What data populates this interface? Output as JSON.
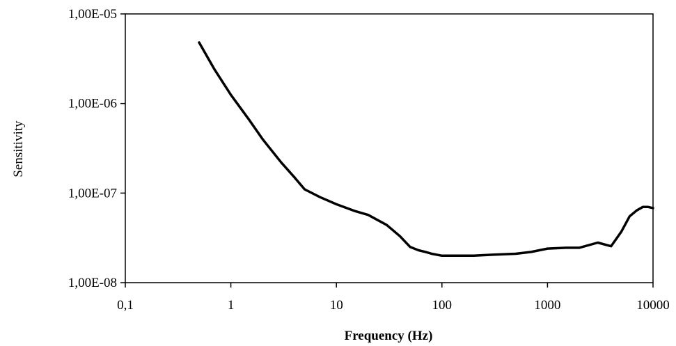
{
  "chart_data": {
    "type": "line",
    "xlabel": "Frequency (Hz)",
    "ylabel": "Sensitivity",
    "x_scale": "log",
    "y_scale": "log",
    "xlim": [
      0.1,
      10000
    ],
    "ylim": [
      1e-08,
      1e-05
    ],
    "x_ticks": [
      "0,1",
      "1",
      "10",
      "100",
      "1000",
      "10000"
    ],
    "y_ticks": [
      "1,00E-08",
      "1,00E-07",
      "1,00E-06",
      "1,00E-05"
    ],
    "grid": false,
    "legend": "none",
    "series": [
      {
        "x": [
          0.5,
          0.7,
          1,
          1.5,
          2,
          3,
          4,
          5,
          7,
          10,
          15,
          20,
          30,
          40,
          50,
          60,
          70,
          80,
          100,
          200,
          300,
          500,
          700,
          1000,
          1500,
          2000,
          3000,
          4000,
          5000,
          6000,
          7000,
          8000,
          9000,
          10000
        ],
        "y": [
          4.8e-06,
          2.4e-06,
          1.25e-06,
          6.5e-07,
          4e-07,
          2.2e-07,
          1.5e-07,
          1.1e-07,
          9e-08,
          7.5e-08,
          6.3e-08,
          5.7e-08,
          4.4e-08,
          3.3e-08,
          2.5e-08,
          2.3e-08,
          2.2e-08,
          2.1e-08,
          2e-08,
          2e-08,
          2.05e-08,
          2.1e-08,
          2.2e-08,
          2.4e-08,
          2.45e-08,
          2.45e-08,
          2.8e-08,
          2.55e-08,
          3.7e-08,
          5.5e-08,
          6.4e-08,
          7e-08,
          7e-08,
          6.8e-08
        ]
      }
    ]
  }
}
